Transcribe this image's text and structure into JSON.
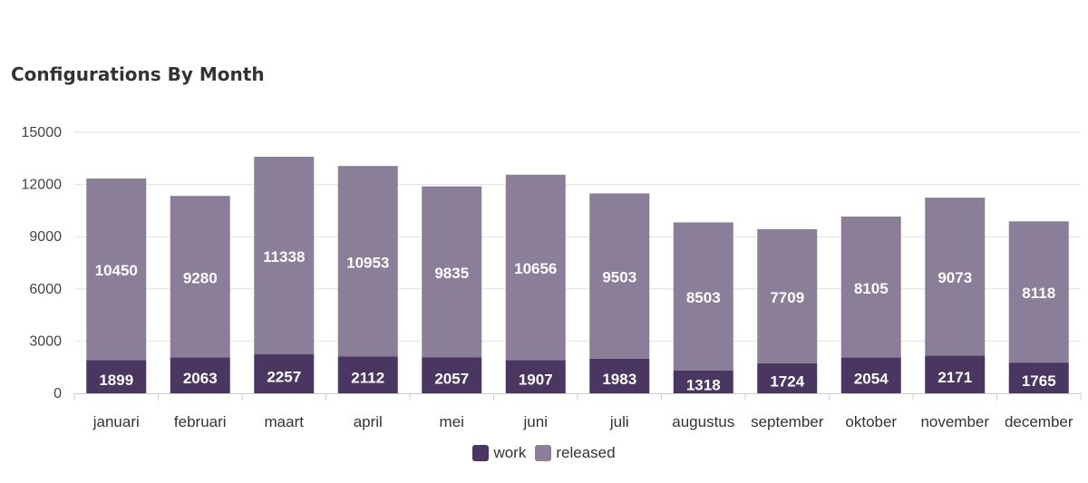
{
  "chart_data": {
    "type": "bar",
    "stacked": true,
    "title": "Configurations By Month",
    "categories": [
      "januari",
      "februari",
      "maart",
      "april",
      "mei",
      "juni",
      "juli",
      "augustus",
      "september",
      "oktober",
      "november",
      "december"
    ],
    "series": [
      {
        "name": "work",
        "color": "#4a3660",
        "values": [
          1899,
          2063,
          2257,
          2112,
          2057,
          1907,
          1983,
          1318,
          1724,
          2054,
          2171,
          1765
        ]
      },
      {
        "name": "released",
        "color": "#8a7e99",
        "values": [
          10450,
          9280,
          11338,
          10953,
          9835,
          10656,
          9503,
          8503,
          7709,
          8105,
          9073,
          8118
        ]
      }
    ],
    "yticks": [
      "0",
      "3000",
      "6000",
      "9000",
      "12000",
      "15000"
    ],
    "ylim": [
      0,
      15000
    ],
    "grid": true,
    "legend_position": "bottom-center"
  }
}
